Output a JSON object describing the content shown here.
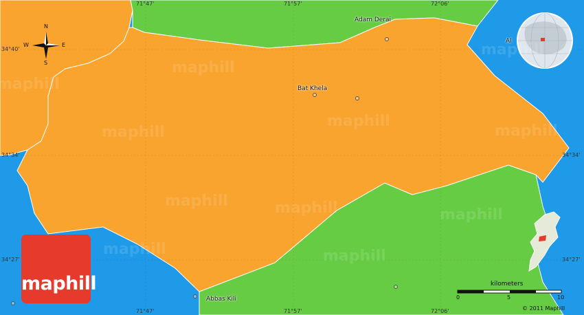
{
  "map": {
    "colors": {
      "water": "#1e9ae8",
      "main_region": "#f9a42e",
      "neighbor_region": "#66cc44",
      "logo": "#e53a2c"
    },
    "places": {
      "adam_derai": "Adam Derai",
      "bat_khela": "Bat Khela",
      "abbas_kili": "Abbas Kili",
      "clipped": "Al"
    },
    "coordinates": {
      "lon_1": "71°47'",
      "lon_2": "71°57'",
      "lon_3": "72°06'",
      "lat_1": "34°40'",
      "lat_2": "34°34'",
      "lat_3": "34°27'"
    },
    "compass": {
      "n": "N",
      "s": "S",
      "e": "E",
      "w": "W"
    },
    "scale": {
      "title": "kilometers",
      "tick_0": "0",
      "tick_5": "5",
      "tick_10": "10"
    },
    "logo": {
      "text": "maphill"
    },
    "watermark": "maphill",
    "copyright": "© 2011 Maphill"
  }
}
